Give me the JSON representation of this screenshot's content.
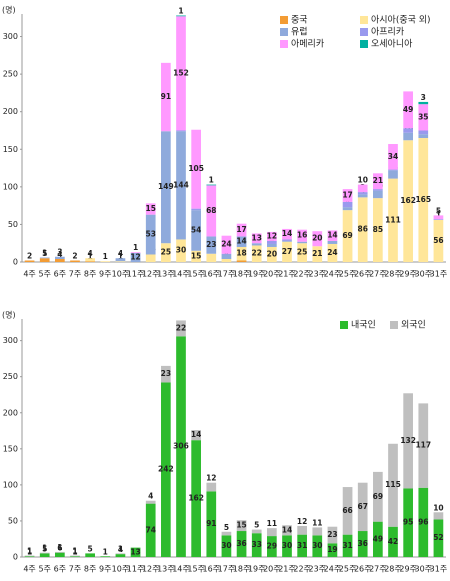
{
  "chart_data": [
    {
      "type": "stacked_bar",
      "y_label": "(명)",
      "categories": [
        "4주",
        "5주",
        "6주",
        "7주",
        "8주",
        "9주",
        "10주",
        "11주",
        "12주",
        "13주",
        "14주",
        "15주",
        "16주",
        "17주",
        "18주",
        "19주",
        "20주",
        "21주",
        "22주",
        "23주",
        "24주",
        "25주",
        "26주",
        "27주",
        "28주",
        "29주",
        "30주",
        "31주"
      ],
      "series": [
        {
          "name": "중국",
          "color": "#f39c34",
          "values": [
            2,
            5,
            4,
            2,
            1,
            0,
            0,
            0,
            0,
            0,
            0,
            0,
            0,
            0,
            2,
            0,
            0,
            0,
            0,
            0,
            0,
            0,
            0,
            0,
            0,
            0,
            0,
            0
          ]
        },
        {
          "name": "아시아(중국 외)",
          "color": "#ffe699",
          "values": [
            0,
            0,
            0,
            0,
            4,
            1,
            1,
            0,
            10,
            25,
            30,
            15,
            11,
            4,
            18,
            22,
            20,
            27,
            25,
            21,
            24,
            69,
            86,
            85,
            111,
            162,
            165,
            56
          ]
        },
        {
          "name": "유럽",
          "color": "#8faadc",
          "values": [
            0,
            1,
            3,
            0,
            0,
            0,
            4,
            12,
            53,
            149,
            144,
            54,
            23,
            6,
            14,
            3,
            4,
            1,
            2,
            0,
            4,
            4,
            4,
            10,
            11,
            10,
            5,
            0
          ]
        },
        {
          "name": "아프리카",
          "color": "#9999ee",
          "values": [
            0,
            0,
            0,
            0,
            0,
            0,
            0,
            0,
            0,
            0,
            1,
            2,
            0,
            1,
            0,
            0,
            4,
            2,
            0,
            0,
            0,
            7,
            3,
            2,
            1,
            6,
            5,
            1
          ]
        },
        {
          "name": "아메리카",
          "color": "#ff99ff",
          "values": [
            0,
            0,
            0,
            0,
            0,
            0,
            0,
            1,
            15,
            91,
            152,
            105,
            68,
            24,
            17,
            13,
            12,
            14,
            16,
            20,
            14,
            17,
            10,
            21,
            34,
            49,
            35,
            5
          ]
        },
        {
          "name": "오세아니아",
          "color": "#00b0a0",
          "values": [
            0,
            0,
            0,
            0,
            0,
            0,
            0,
            0,
            0,
            0,
            1,
            0,
            1,
            0,
            0,
            0,
            0,
            0,
            0,
            0,
            0,
            0,
            0,
            0,
            0,
            0,
            3,
            0
          ]
        }
      ],
      "ylim": [
        0,
        330
      ],
      "yticks": [
        0,
        50,
        100,
        150,
        200,
        250,
        300
      ],
      "legend": "top-right"
    },
    {
      "type": "stacked_bar",
      "y_label": "(명)",
      "categories": [
        "4주",
        "5주",
        "6주",
        "7주",
        "8주",
        "9주",
        "10주",
        "11주",
        "12주",
        "13주",
        "14주",
        "15주",
        "16주",
        "17주",
        "18주",
        "19주",
        "20주",
        "21주",
        "22주",
        "23주",
        "24주",
        "25주",
        "26주",
        "27주",
        "28주",
        "29주",
        "30주",
        "31주"
      ],
      "series": [
        {
          "name": "내국인",
          "color": "#2dbb2d",
          "values": [
            1,
            5,
            6,
            1,
            5,
            1,
            4,
            13,
            74,
            242,
            306,
            162,
            91,
            30,
            36,
            33,
            29,
            30,
            31,
            30,
            19,
            31,
            36,
            49,
            42,
            95,
            96,
            52
          ]
        },
        {
          "name": "외국인",
          "color": "#bfbfbf",
          "values": [
            1,
            1,
            1,
            1,
            0,
            0,
            1,
            0,
            4,
            23,
            22,
            14,
            12,
            5,
            15,
            5,
            11,
            14,
            12,
            11,
            23,
            66,
            67,
            69,
            115,
            132,
            117,
            10
          ]
        }
      ],
      "ylim": [
        0,
        330
      ],
      "yticks": [
        0,
        50,
        100,
        150,
        200,
        250,
        300
      ],
      "legend": "top-right"
    }
  ]
}
